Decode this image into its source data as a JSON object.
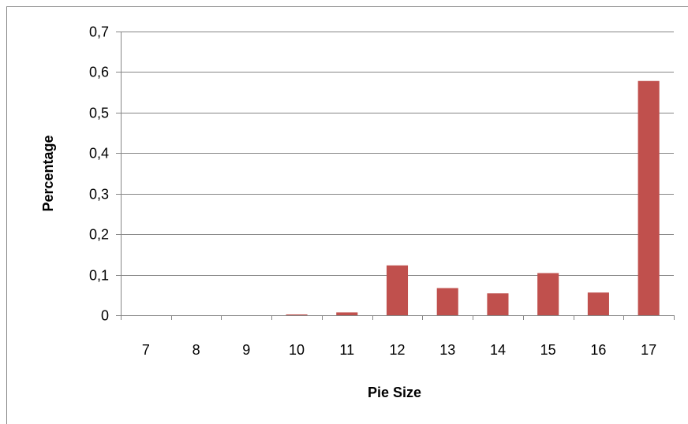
{
  "chart_data": {
    "type": "bar",
    "categories": [
      "7",
      "8",
      "9",
      "10",
      "11",
      "12",
      "13",
      "14",
      "15",
      "16",
      "17"
    ],
    "values": [
      0,
      0,
      0,
      0.002,
      0.007,
      0.123,
      0.067,
      0.054,
      0.104,
      0.056,
      0.578
    ],
    "title": "",
    "xlabel": "Pie Size",
    "ylabel": "Percentage",
    "ylim": [
      0,
      0.7
    ],
    "yticks": [
      "0",
      "0,1",
      "0,2",
      "0,3",
      "0,4",
      "0,5",
      "0,6",
      "0,7"
    ],
    "grid": true,
    "legend": "none",
    "colors": {
      "bar": "#c0504d",
      "grid": "#868686",
      "axis": "#868686",
      "border": "#868686"
    }
  }
}
